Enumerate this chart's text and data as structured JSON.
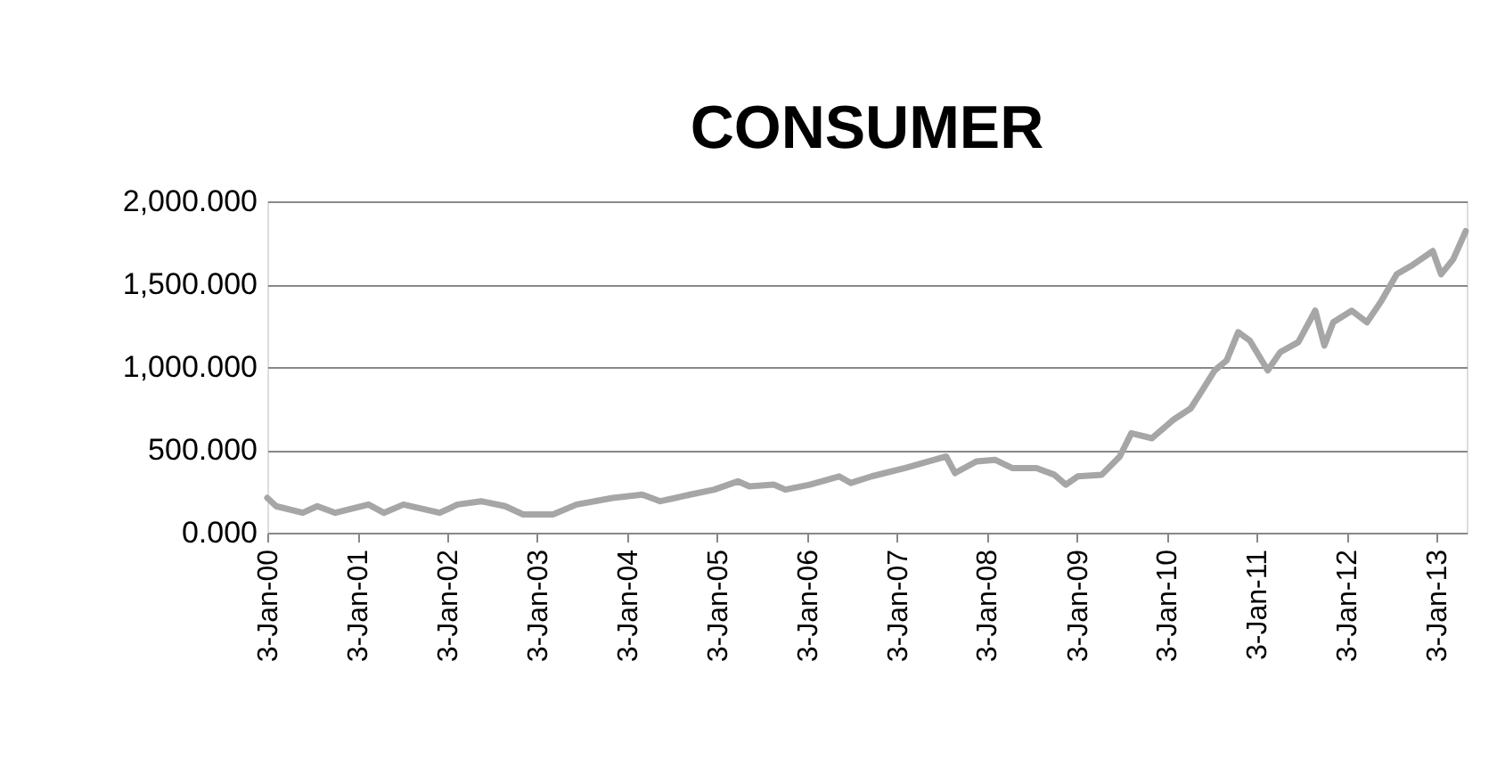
{
  "chart_data": {
    "type": "line",
    "title": "CONSUMER",
    "x": [
      "2000-01-03",
      "2000-02-08",
      "2000-05-26",
      "2000-07-24",
      "2000-10-05",
      "2001-02-17",
      "2001-04-20",
      "2001-07-09",
      "2001-12-03",
      "2002-02-14",
      "2002-05-20",
      "2002-08-26",
      "2002-11-07",
      "2003-03-08",
      "2003-06-12",
      "2003-11-05",
      "2004-03-05",
      "2004-05-17",
      "2004-09-15",
      "2004-12-22",
      "2005-03-28",
      "2005-05-14",
      "2005-08-21",
      "2005-10-07",
      "2006-01-14",
      "2006-05-13",
      "2006-06-30",
      "2006-09-22",
      "2007-02-05",
      "2007-07-22",
      "2007-08-27",
      "2007-11-22",
      "2008-02-05",
      "2008-04-15",
      "2008-07-23",
      "2008-10-03",
      "2008-11-19",
      "2009-01-06",
      "2009-04-14",
      "2009-06-26",
      "2009-08-12",
      "2009-11-04",
      "2010-01-28",
      "2010-04-10",
      "2010-05-27",
      "2010-07-17",
      "2010-09-03",
      "2010-10-20",
      "2010-12-06",
      "2011-02-17",
      "2011-04-09",
      "2011-06-21",
      "2011-08-29",
      "2011-10-05",
      "2011-11-10",
      "2012-01-24",
      "2012-03-26",
      "2012-05-24",
      "2012-07-25",
      "2012-09-21",
      "2012-12-18",
      "2013-01-21",
      "2013-03-11",
      "2013-05-01"
    ],
    "series": [
      {
        "color": "#a6a6a6",
        "values": [
          210,
          160,
          120,
          160,
          120,
          170,
          120,
          170,
          120,
          170,
          190,
          160,
          110,
          110,
          170,
          210,
          230,
          190,
          230,
          260,
          310,
          280,
          290,
          260,
          290,
          340,
          300,
          340,
          390,
          460,
          360,
          430,
          440,
          390,
          390,
          350,
          290,
          340,
          350,
          460,
          600,
          570,
          680,
          750,
          860,
          980,
          1040,
          1210,
          1160,
          980,
          1090,
          1150,
          1340,
          1130,
          1270,
          1340,
          1270,
          1400,
          1560,
          1610,
          1700,
          1560,
          1650,
          1820
        ]
      }
    ],
    "xlim": [
      "2000-01-03",
      "2013-05-05"
    ],
    "xticks": [
      {
        "value": "2000-01-03",
        "label": "3-Jan-00"
      },
      {
        "value": "2001-01-03",
        "label": "3-Jan-01"
      },
      {
        "value": "2002-01-03",
        "label": "3-Jan-02"
      },
      {
        "value": "2003-01-03",
        "label": "3-Jan-03"
      },
      {
        "value": "2004-01-03",
        "label": "3-Jan-04"
      },
      {
        "value": "2005-01-03",
        "label": "3-Jan-05"
      },
      {
        "value": "2006-01-03",
        "label": "3-Jan-06"
      },
      {
        "value": "2007-01-03",
        "label": "3-Jan-07"
      },
      {
        "value": "2008-01-03",
        "label": "3-Jan-08"
      },
      {
        "value": "2009-01-03",
        "label": "3-Jan-09"
      },
      {
        "value": "2010-01-03",
        "label": "3-Jan-10"
      },
      {
        "value": "2011-01-03",
        "label": "3-Jan-11"
      },
      {
        "value": "2012-01-03",
        "label": "3-Jan-12"
      },
      {
        "value": "2013-01-03",
        "label": "3-Jan-13"
      }
    ],
    "ylim": [
      0,
      2000
    ],
    "yticks": [
      {
        "value": 0,
        "label": "0.000"
      },
      {
        "value": 500,
        "label": "500.000"
      },
      {
        "value": 1000,
        "label": "1,000.000"
      },
      {
        "value": 1500,
        "label": "1,500.000"
      },
      {
        "value": 2000,
        "label": "2,000.000"
      }
    ],
    "grid": "y",
    "marker": "none",
    "line_style": "solid"
  }
}
